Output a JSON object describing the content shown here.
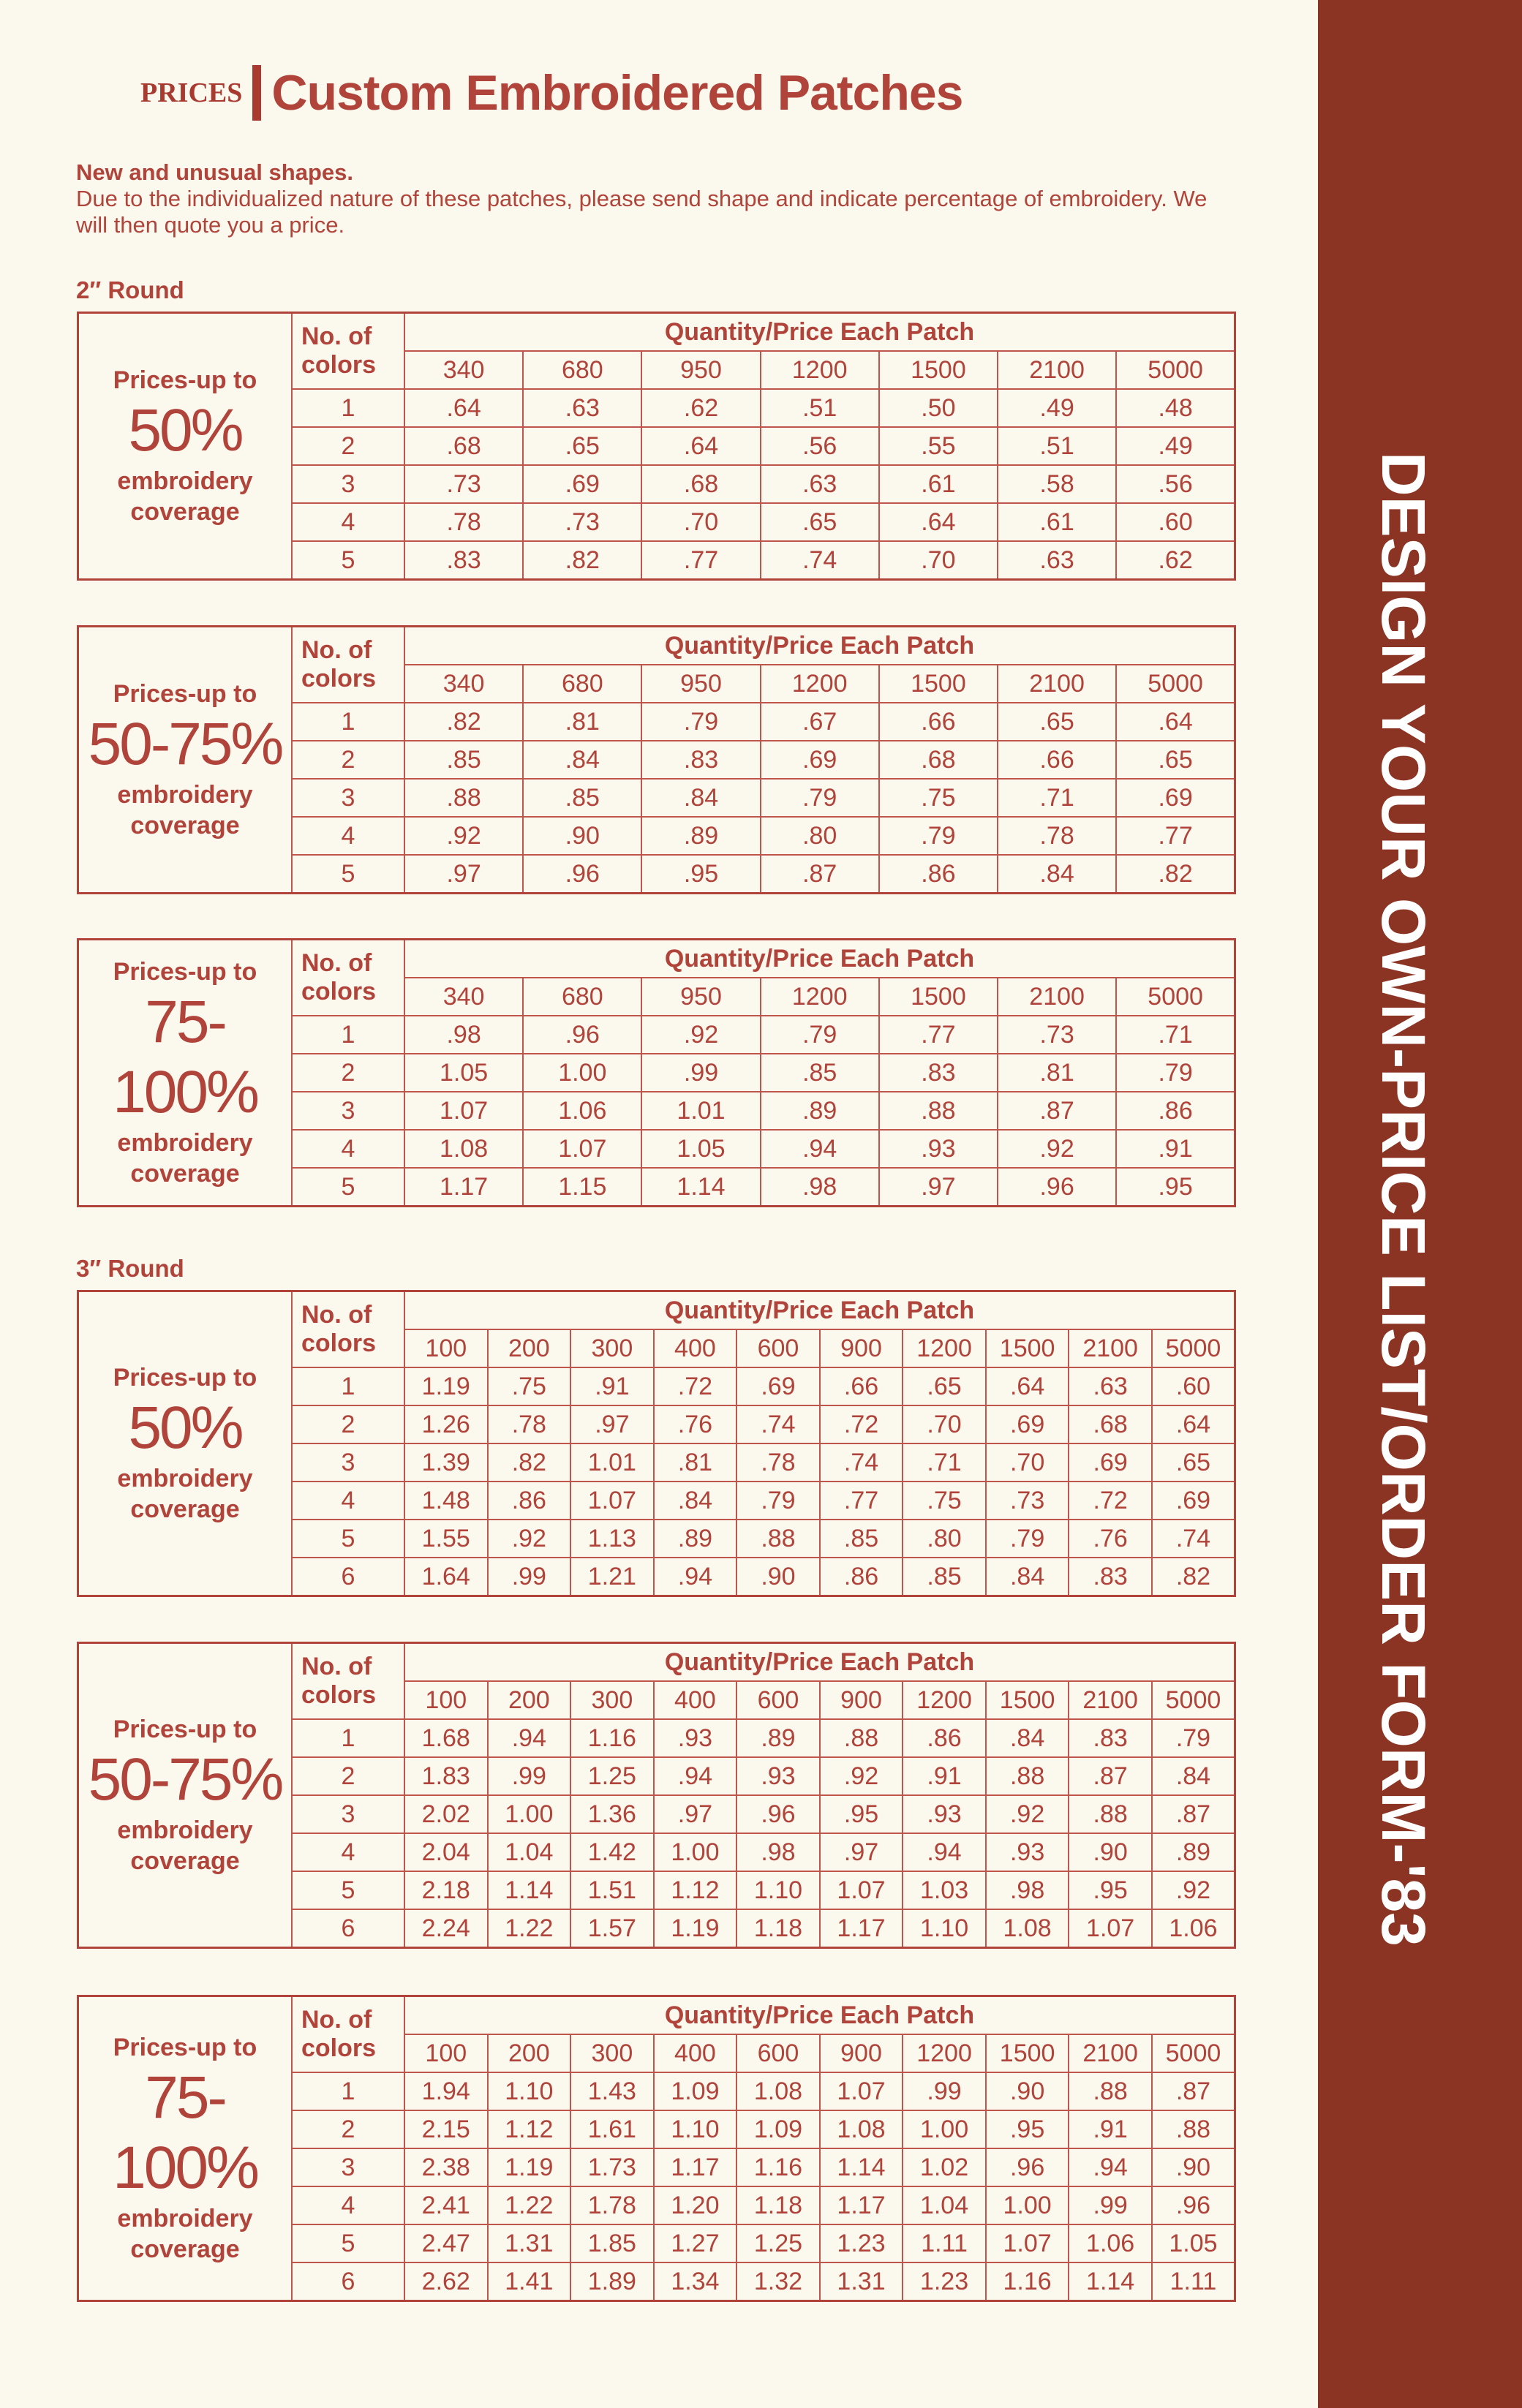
{
  "header": {
    "section": "PRICES",
    "title": "Custom Embroidered Patches"
  },
  "intro": {
    "lead": "New and unusual shapes.",
    "body": "Due to the individualized nature of these patches, please send shape and indicate percentage of embroidery. We will then quote you a price."
  },
  "sidebar": {
    "title": "DESIGN YOUR OWN-PRICE LIST/ORDER FORM-'83"
  },
  "colors": {
    "accent": "#b0443a",
    "band": "#8c3424",
    "background": "#fbf8ee"
  },
  "sections": [
    {
      "label": "2″ Round",
      "tables": [
        {
          "prefix": "Prices-up to",
          "percent": "50%",
          "suffix1": "embroidery",
          "suffix2": "coverage",
          "colors_header": "No. of colors",
          "qty_header": "Quantity/Price Each Patch",
          "quantities": [
            "340",
            "680",
            "950",
            "1200",
            "1500",
            "2100",
            "5000"
          ],
          "rows": [
            {
              "colors": "1",
              "prices": [
                ".64",
                ".63",
                ".62",
                ".51",
                ".50",
                ".49",
                ".48"
              ]
            },
            {
              "colors": "2",
              "prices": [
                ".68",
                ".65",
                ".64",
                ".56",
                ".55",
                ".51",
                ".49"
              ]
            },
            {
              "colors": "3",
              "prices": [
                ".73",
                ".69",
                ".68",
                ".63",
                ".61",
                ".58",
                ".56"
              ]
            },
            {
              "colors": "4",
              "prices": [
                ".78",
                ".73",
                ".70",
                ".65",
                ".64",
                ".61",
                ".60"
              ]
            },
            {
              "colors": "5",
              "prices": [
                ".83",
                ".82",
                ".77",
                ".74",
                ".70",
                ".63",
                ".62"
              ]
            }
          ]
        },
        {
          "prefix": "Prices-up to",
          "percent": "50-75%",
          "suffix1": "embroidery",
          "suffix2": "coverage",
          "colors_header": "No. of colors",
          "qty_header": "Quantity/Price Each Patch",
          "quantities": [
            "340",
            "680",
            "950",
            "1200",
            "1500",
            "2100",
            "5000"
          ],
          "rows": [
            {
              "colors": "1",
              "prices": [
                ".82",
                ".81",
                ".79",
                ".67",
                ".66",
                ".65",
                ".64"
              ]
            },
            {
              "colors": "2",
              "prices": [
                ".85",
                ".84",
                ".83",
                ".69",
                ".68",
                ".66",
                ".65"
              ]
            },
            {
              "colors": "3",
              "prices": [
                ".88",
                ".85",
                ".84",
                ".79",
                ".75",
                ".71",
                ".69"
              ]
            },
            {
              "colors": "4",
              "prices": [
                ".92",
                ".90",
                ".89",
                ".80",
                ".79",
                ".78",
                ".77"
              ]
            },
            {
              "colors": "5",
              "prices": [
                ".97",
                ".96",
                ".95",
                ".87",
                ".86",
                ".84",
                ".82"
              ]
            }
          ]
        },
        {
          "prefix": "Prices-up to",
          "percent": "75-100%",
          "suffix1": "embroidery",
          "suffix2": "coverage",
          "colors_header": "No. of colors",
          "qty_header": "Quantity/Price Each Patch",
          "quantities": [
            "340",
            "680",
            "950",
            "1200",
            "1500",
            "2100",
            "5000"
          ],
          "rows": [
            {
              "colors": "1",
              "prices": [
                ".98",
                ".96",
                ".92",
                ".79",
                ".77",
                ".73",
                ".71"
              ]
            },
            {
              "colors": "2",
              "prices": [
                "1.05",
                "1.00",
                ".99",
                ".85",
                ".83",
                ".81",
                ".79"
              ]
            },
            {
              "colors": "3",
              "prices": [
                "1.07",
                "1.06",
                "1.01",
                ".89",
                ".88",
                ".87",
                ".86"
              ]
            },
            {
              "colors": "4",
              "prices": [
                "1.08",
                "1.07",
                "1.05",
                ".94",
                ".93",
                ".92",
                ".91"
              ]
            },
            {
              "colors": "5",
              "prices": [
                "1.17",
                "1.15",
                "1.14",
                ".98",
                ".97",
                ".96",
                ".95"
              ]
            }
          ]
        }
      ]
    },
    {
      "label": "3″ Round",
      "tables": [
        {
          "prefix": "Prices-up to",
          "percent": "50%",
          "suffix1": "embroidery",
          "suffix2": "coverage",
          "colors_header": "No. of colors",
          "qty_header": "Quantity/Price Each Patch",
          "quantities": [
            "100",
            "200",
            "300",
            "400",
            "600",
            "900",
            "1200",
            "1500",
            "2100",
            "5000"
          ],
          "rows": [
            {
              "colors": "1",
              "prices": [
                "1.19",
                ".75",
                ".91",
                ".72",
                ".69",
                ".66",
                ".65",
                ".64",
                ".63",
                ".60"
              ]
            },
            {
              "colors": "2",
              "prices": [
                "1.26",
                ".78",
                ".97",
                ".76",
                ".74",
                ".72",
                ".70",
                ".69",
                ".68",
                ".64"
              ]
            },
            {
              "colors": "3",
              "prices": [
                "1.39",
                ".82",
                "1.01",
                ".81",
                ".78",
                ".74",
                ".71",
                ".70",
                ".69",
                ".65"
              ]
            },
            {
              "colors": "4",
              "prices": [
                "1.48",
                ".86",
                "1.07",
                ".84",
                ".79",
                ".77",
                ".75",
                ".73",
                ".72",
                ".69"
              ]
            },
            {
              "colors": "5",
              "prices": [
                "1.55",
                ".92",
                "1.13",
                ".89",
                ".88",
                ".85",
                ".80",
                ".79",
                ".76",
                ".74"
              ]
            },
            {
              "colors": "6",
              "prices": [
                "1.64",
                ".99",
                "1.21",
                ".94",
                ".90",
                ".86",
                ".85",
                ".84",
                ".83",
                ".82"
              ]
            }
          ]
        },
        {
          "prefix": "Prices-up to",
          "percent": "50-75%",
          "suffix1": "embroidery",
          "suffix2": "coverage",
          "colors_header": "No. of colors",
          "qty_header": "Quantity/Price Each Patch",
          "quantities": [
            "100",
            "200",
            "300",
            "400",
            "600",
            "900",
            "1200",
            "1500",
            "2100",
            "5000"
          ],
          "rows": [
            {
              "colors": "1",
              "prices": [
                "1.68",
                ".94",
                "1.16",
                ".93",
                ".89",
                ".88",
                ".86",
                ".84",
                ".83",
                ".79"
              ]
            },
            {
              "colors": "2",
              "prices": [
                "1.83",
                ".99",
                "1.25",
                ".94",
                ".93",
                ".92",
                ".91",
                ".88",
                ".87",
                ".84"
              ]
            },
            {
              "colors": "3",
              "prices": [
                "2.02",
                "1.00",
                "1.36",
                ".97",
                ".96",
                ".95",
                ".93",
                ".92",
                ".88",
                ".87"
              ]
            },
            {
              "colors": "4",
              "prices": [
                "2.04",
                "1.04",
                "1.42",
                "1.00",
                ".98",
                ".97",
                ".94",
                ".93",
                ".90",
                ".89"
              ]
            },
            {
              "colors": "5",
              "prices": [
                "2.18",
                "1.14",
                "1.51",
                "1.12",
                "1.10",
                "1.07",
                "1.03",
                ".98",
                ".95",
                ".92"
              ]
            },
            {
              "colors": "6",
              "prices": [
                "2.24",
                "1.22",
                "1.57",
                "1.19",
                "1.18",
                "1.17",
                "1.10",
                "1.08",
                "1.07",
                "1.06"
              ]
            }
          ]
        },
        {
          "prefix": "Prices-up to",
          "percent": "75-100%",
          "suffix1": "embroidery",
          "suffix2": "coverage",
          "colors_header": "No. of colors",
          "qty_header": "Quantity/Price Each Patch",
          "quantities": [
            "100",
            "200",
            "300",
            "400",
            "600",
            "900",
            "1200",
            "1500",
            "2100",
            "5000"
          ],
          "rows": [
            {
              "colors": "1",
              "prices": [
                "1.94",
                "1.10",
                "1.43",
                "1.09",
                "1.08",
                "1.07",
                ".99",
                ".90",
                ".88",
                ".87"
              ]
            },
            {
              "colors": "2",
              "prices": [
                "2.15",
                "1.12",
                "1.61",
                "1.10",
                "1.09",
                "1.08",
                "1.00",
                ".95",
                ".91",
                ".88"
              ]
            },
            {
              "colors": "3",
              "prices": [
                "2.38",
                "1.19",
                "1.73",
                "1.17",
                "1.16",
                "1.14",
                "1.02",
                ".96",
                ".94",
                ".90"
              ]
            },
            {
              "colors": "4",
              "prices": [
                "2.41",
                "1.22",
                "1.78",
                "1.20",
                "1.18",
                "1.17",
                "1.04",
                "1.00",
                ".99",
                ".96"
              ]
            },
            {
              "colors": "5",
              "prices": [
                "2.47",
                "1.31",
                "1.85",
                "1.27",
                "1.25",
                "1.23",
                "1.11",
                "1.07",
                "1.06",
                "1.05"
              ]
            },
            {
              "colors": "6",
              "prices": [
                "2.62",
                "1.41",
                "1.89",
                "1.34",
                "1.32",
                "1.31",
                "1.23",
                "1.16",
                "1.14",
                "1.11"
              ]
            }
          ]
        }
      ]
    }
  ]
}
